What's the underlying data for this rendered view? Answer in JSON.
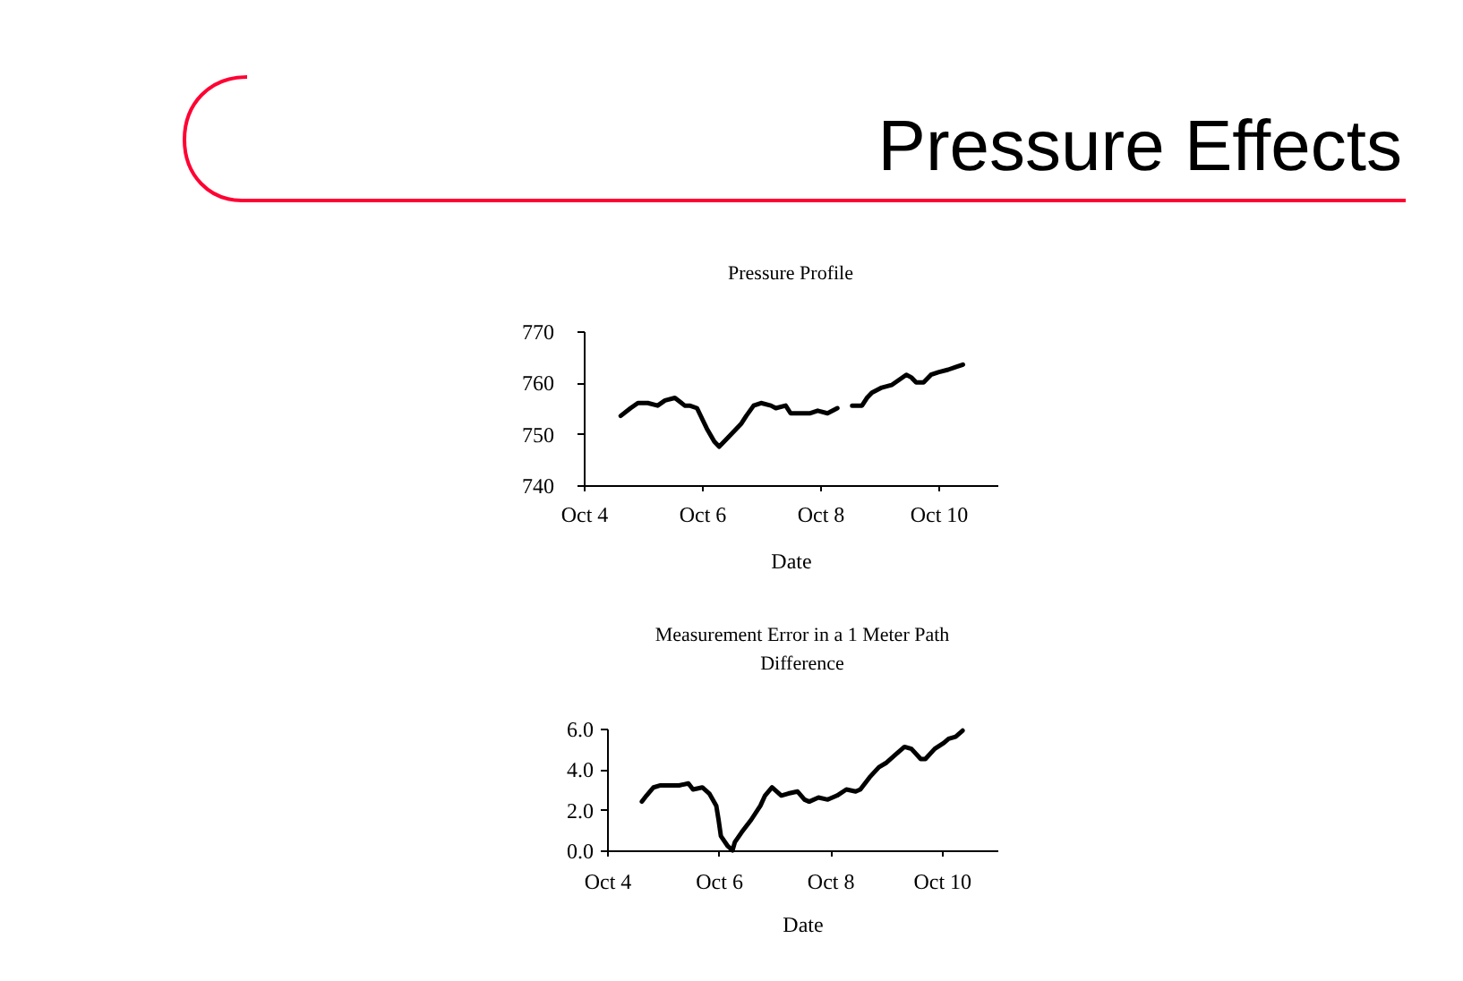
{
  "chart_data": [
    {
      "type": "other",
      "title": "Pressure Effects"
    },
    {
      "type": "line",
      "title": "Pressure Profile",
      "xlabel": "Date",
      "color": "#000000",
      "x": [
        "--10-04T15:00",
        "--10-04T19:00",
        "--10-04T22:00",
        "--10-05T02:00",
        "--10-05T06:00",
        "--10-05T09:00",
        "--10-05T13:00",
        "--10-05T17:00",
        "--10-05T19:00",
        "--10-05T22:00",
        "--10-06T00:00",
        "--10-06T02:00",
        "--10-06T05:00",
        "--10-06T07:00",
        "--10-06T10:00",
        "--10-06T12:00",
        "--10-06T16:00",
        "--10-06T18:00",
        "--10-06T21:00",
        "--10-07T00:00",
        "--10-07T04:00",
        "--10-07T06:00",
        "--10-07T10:00",
        "--10-07T12:00",
        "--10-07T16:00",
        "--10-07T20:00",
        "--10-07T23:00",
        "--10-08T03:00",
        "--10-08T07:00",
        "--10-08T10:00",
        "--10-08T13:00",
        "--10-08T17:00",
        "--10-08T19:00",
        "--10-08T21:00",
        "--10-09T01:00",
        "--10-09T05:00",
        "--10-09T08:00",
        "--10-09T11:00",
        "--10-09T13:00",
        "--10-09T15:00",
        "--10-09T18:00",
        "--10-09T21:00",
        "--10-10T00:00",
        "--10-10T04:00",
        "--10-10T07:00",
        "--10-10T10:00"
      ],
      "values": [
        753.5,
        755,
        756,
        756,
        755.5,
        756.5,
        757,
        755.5,
        755.5,
        755,
        753,
        751,
        748.5,
        747.5,
        749,
        750,
        752,
        753.5,
        755.5,
        756,
        755.5,
        755,
        755.5,
        754,
        754,
        754,
        754.5,
        754,
        755,
        null,
        755.5,
        755.5,
        757,
        758,
        759,
        759.5,
        760.5,
        761.5,
        761,
        760,
        760,
        761.5,
        762,
        762.5,
        763,
        763.5
      ],
      "xlim": [
        "--10-04",
        "--10-11"
      ],
      "xticks": [
        {
          "value": "--10-04",
          "label": "Oct 4"
        },
        {
          "value": "--10-06",
          "label": "Oct 6"
        },
        {
          "value": "--10-08",
          "label": "Oct 8"
        },
        {
          "value": "--10-10",
          "label": "Oct 10"
        }
      ],
      "ylim": [
        740,
        770
      ],
      "yticks": [
        740,
        750,
        760,
        770
      ]
    },
    {
      "type": "line",
      "title": "Measurement Error in a 1 Meter Path Difference",
      "xlabel": "Date",
      "color": "#000000",
      "x": [
        "--10-04T15:00",
        "--10-04T17:00",
        "--10-04T20:00",
        "--10-04T23:00",
        "--10-05T03:00",
        "--10-05T07:00",
        "--10-05T11:00",
        "--10-05T13:00",
        "--10-05T17:00",
        "--10-05T20:00",
        "--10-05T23:00",
        "--10-06T00:00",
        "--10-06T01:00",
        "--10-06T04:00",
        "--10-06T06:00",
        "--10-06T07:00",
        "--10-06T10:00",
        "--10-06T14:00",
        "--10-06T18:00",
        "--10-06T20:00",
        "--10-06T23:00",
        "--10-07T03:00",
        "--10-07T06:00",
        "--10-07T10:00",
        "--10-07T13:00",
        "--10-07T15:00",
        "--10-07T19:00",
        "--10-07T23:00",
        "--10-08T03:00",
        "--10-08T07:00",
        "--10-08T11:00",
        "--10-08T13:00",
        "--10-08T17:00",
        "--10-08T21:00",
        "--10-09T00:00",
        "--10-09T04:00",
        "--10-09T08:00",
        "--10-09T11:00",
        "--10-09T15:00",
        "--10-09T17:00",
        "--10-09T21:00",
        "--10-10T01:00",
        "--10-10T03:00",
        "--10-10T06:00",
        "--10-10T09:00"
      ],
      "values": [
        2.4,
        2.7,
        3.1,
        3.2,
        3.2,
        3.2,
        3.3,
        3.0,
        3.1,
        2.8,
        2.2,
        1.5,
        0.7,
        0.2,
        0.0,
        0.4,
        0.9,
        1.5,
        2.2,
        2.7,
        3.1,
        2.7,
        2.8,
        2.9,
        2.5,
        2.4,
        2.6,
        2.5,
        2.7,
        3.0,
        2.9,
        3.0,
        3.6,
        4.1,
        4.3,
        4.7,
        5.1,
        5.0,
        4.5,
        4.5,
        5.0,
        5.3,
        5.5,
        5.6,
        5.9
      ],
      "xlim": [
        "--10-04",
        "--10-11"
      ],
      "xticks": [
        {
          "value": "--10-04",
          "label": "Oct 4"
        },
        {
          "value": "--10-06",
          "label": "Oct 6"
        },
        {
          "value": "--10-08",
          "label": "Oct 8"
        },
        {
          "value": "--10-10",
          "label": "Oct 10"
        }
      ],
      "ylim": [
        0,
        6
      ],
      "yticks": [
        {
          "value": 0,
          "label": "0.0"
        },
        {
          "value": 2,
          "label": "2.0"
        },
        {
          "value": 4,
          "label": "4.0"
        },
        {
          "value": 6,
          "label": "6.0"
        }
      ]
    }
  ]
}
